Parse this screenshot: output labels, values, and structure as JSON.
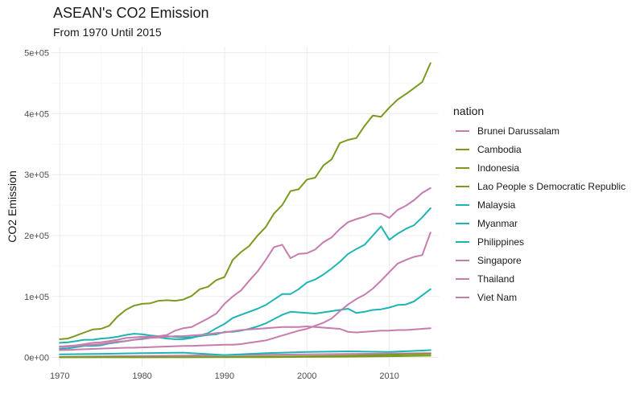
{
  "chart_data": {
    "type": "line",
    "title": "ASEAN's CO2 Emission",
    "subtitle": "From 1970 Until 2015",
    "xlabel": "",
    "ylabel": "CO2 Emission",
    "xlim": [
      1969,
      2016
    ],
    "ylim": [
      -15000,
      510000
    ],
    "x_ticks": [
      1970,
      1980,
      1990,
      2000,
      2010
    ],
    "y_ticks": [
      0,
      100000,
      200000,
      300000,
      400000,
      500000
    ],
    "y_tick_labels": [
      "0e+00",
      "1e+05",
      "2e+05",
      "3e+05",
      "4e+05",
      "5e+05"
    ],
    "grid": true,
    "legend_title": "nation",
    "legend_position": "right",
    "series": [
      {
        "name": "Brunei Darussalam",
        "color": "#c77cae",
        "x": [
          1970,
          1975,
          1980,
          1985,
          1990,
          1995,
          2000,
          2005,
          2010,
          2015
        ],
        "y": [
          1000,
          1800,
          2500,
          3200,
          3800,
          4500,
          5200,
          5800,
          6500,
          7000
        ]
      },
      {
        "name": "Cambodia",
        "color": "#7a9a1e",
        "x": [
          1970,
          1975,
          1980,
          1985,
          1990,
          1995,
          2000,
          2005,
          2010,
          2015
        ],
        "y": [
          500,
          700,
          400,
          500,
          800,
          1500,
          2000,
          3000,
          4500,
          6000
        ]
      },
      {
        "name": "Indonesia",
        "color": "#7a9a1e",
        "x": [
          1970,
          1971,
          1972,
          1973,
          1974,
          1975,
          1976,
          1977,
          1978,
          1979,
          1980,
          1981,
          1982,
          1983,
          1984,
          1985,
          1986,
          1987,
          1988,
          1989,
          1990,
          1991,
          1992,
          1993,
          1994,
          1995,
          1996,
          1997,
          1998,
          1999,
          2000,
          2001,
          2002,
          2003,
          2004,
          2005,
          2006,
          2007,
          2008,
          2009,
          2010,
          2011,
          2012,
          2013,
          2014,
          2015
        ],
        "y": [
          30000,
          31000,
          36000,
          41000,
          46000,
          47000,
          52000,
          67000,
          78000,
          85000,
          88000,
          89000,
          93000,
          94000,
          93000,
          95000,
          101000,
          112000,
          116000,
          127000,
          132000,
          160000,
          173000,
          183000,
          200000,
          214000,
          236000,
          250000,
          273000,
          276000,
          292000,
          295000,
          315000,
          325000,
          352000,
          357000,
          360000,
          380000,
          397000,
          395000,
          410000,
          423000,
          432000,
          442000,
          452000,
          483000
        ]
      },
      {
        "name": "Lao People s Democratic Republic",
        "color": "#7a9a1e",
        "x": [
          1970,
          1975,
          1980,
          1985,
          1990,
          1995,
          2000,
          2005,
          2010,
          2015
        ],
        "y": [
          300,
          300,
          300,
          400,
          400,
          500,
          900,
          1300,
          2000,
          3000
        ]
      },
      {
        "name": "Malaysia",
        "color": "#1fb4b4",
        "x": [
          1970,
          1971,
          1972,
          1973,
          1974,
          1975,
          1976,
          1977,
          1978,
          1979,
          1980,
          1981,
          1982,
          1983,
          1984,
          1985,
          1986,
          1987,
          1988,
          1989,
          1990,
          1991,
          1992,
          1993,
          1994,
          1995,
          1996,
          1997,
          1998,
          1999,
          2000,
          2001,
          2002,
          2003,
          2004,
          2005,
          2006,
          2007,
          2008,
          2009,
          2010,
          2011,
          2012,
          2013,
          2014,
          2015
        ],
        "y": [
          14000,
          15000,
          17000,
          19000,
          19000,
          20000,
          23000,
          25000,
          27000,
          29000,
          31000,
          33000,
          33000,
          31000,
          30000,
          30000,
          32000,
          36000,
          40000,
          48000,
          55000,
          65000,
          70000,
          75000,
          80000,
          86000,
          95000,
          104000,
          104000,
          112000,
          123000,
          128000,
          136000,
          146000,
          157000,
          170000,
          178000,
          185000,
          200000,
          215000,
          193000,
          203000,
          211000,
          217000,
          230000,
          245000
        ]
      },
      {
        "name": "Myanmar",
        "color": "#1fb4b4",
        "x": [
          1970,
          1975,
          1980,
          1985,
          1990,
          1995,
          2000,
          2005,
          2010,
          2015
        ],
        "y": [
          5000,
          6000,
          7000,
          8000,
          4000,
          7000,
          9000,
          10000,
          9000,
          12000
        ]
      },
      {
        "name": "Philippines",
        "color": "#1fb4b4",
        "x": [
          1970,
          1971,
          1972,
          1973,
          1974,
          1975,
          1976,
          1977,
          1978,
          1979,
          1980,
          1981,
          1982,
          1983,
          1984,
          1985,
          1986,
          1987,
          1988,
          1989,
          1990,
          1991,
          1992,
          1993,
          1994,
          1995,
          1996,
          1997,
          1998,
          1999,
          2000,
          2001,
          2002,
          2003,
          2004,
          2005,
          2006,
          2007,
          2008,
          2009,
          2010,
          2011,
          2012,
          2013,
          2014,
          2015
        ],
        "y": [
          24000,
          25000,
          27000,
          29000,
          29000,
          31000,
          32000,
          34000,
          37000,
          39000,
          38000,
          36000,
          35000,
          35000,
          34000,
          33000,
          33000,
          35000,
          37000,
          38000,
          42000,
          42000,
          44000,
          47000,
          51000,
          56000,
          63000,
          70000,
          75000,
          74000,
          73000,
          72000,
          74000,
          76000,
          78000,
          80000,
          73000,
          75000,
          78000,
          79000,
          82000,
          86000,
          87000,
          92000,
          102000,
          112000
        ]
      },
      {
        "name": "Singapore",
        "color": "#c77cae",
        "x": [
          1970,
          1971,
          1972,
          1973,
          1974,
          1975,
          1976,
          1977,
          1978,
          1979,
          1980,
          1981,
          1982,
          1983,
          1984,
          1985,
          1986,
          1987,
          1988,
          1989,
          1990,
          1991,
          1992,
          1993,
          1994,
          1995,
          1996,
          1997,
          1998,
          1999,
          2000,
          2001,
          2002,
          2003,
          2004,
          2005,
          2006,
          2007,
          2008,
          2009,
          2010,
          2011,
          2012,
          2013,
          2014,
          2015
        ],
        "y": [
          17000,
          18000,
          19000,
          20000,
          21000,
          22000,
          24000,
          26000,
          27000,
          29000,
          30000,
          32000,
          33000,
          34000,
          35000,
          35000,
          36000,
          37000,
          38000,
          40000,
          41000,
          43000,
          45000,
          46000,
          47000,
          48000,
          49000,
          50000,
          50000,
          50000,
          51000,
          50000,
          49000,
          48000,
          47000,
          42000,
          41000,
          42000,
          43000,
          44000,
          44000,
          45000,
          45000,
          46000,
          47000,
          48000
        ]
      },
      {
        "name": "Thailand",
        "color": "#c77cae",
        "x": [
          1970,
          1971,
          1972,
          1973,
          1974,
          1975,
          1976,
          1977,
          1978,
          1979,
          1980,
          1981,
          1982,
          1983,
          1984,
          1985,
          1986,
          1987,
          1988,
          1989,
          1990,
          1991,
          1992,
          1993,
          1994,
          1995,
          1996,
          1997,
          1998,
          1999,
          2000,
          2001,
          2002,
          2003,
          2004,
          2005,
          2006,
          2007,
          2008,
          2009,
          2010,
          2011,
          2012,
          2013,
          2014,
          2015
        ],
        "y": [
          18000,
          19000,
          20000,
          22000,
          24000,
          25000,
          27000,
          29000,
          32000,
          33000,
          34000,
          34000,
          35000,
          37000,
          44000,
          48000,
          50000,
          57000,
          64000,
          72000,
          88000,
          100000,
          110000,
          126000,
          141000,
          160000,
          181000,
          185000,
          163000,
          170000,
          171000,
          177000,
          189000,
          197000,
          211000,
          222000,
          227000,
          231000,
          236000,
          236000,
          229000,
          242000,
          249000,
          258000,
          270000,
          278000
        ]
      },
      {
        "name": "Viet Nam",
        "color": "#c77cae",
        "x": [
          1970,
          1971,
          1972,
          1973,
          1974,
          1975,
          1976,
          1977,
          1978,
          1979,
          1980,
          1981,
          1982,
          1983,
          1984,
          1985,
          1986,
          1987,
          1988,
          1989,
          1990,
          1991,
          1992,
          1993,
          1994,
          1995,
          1996,
          1997,
          1998,
          1999,
          2000,
          2001,
          2002,
          2003,
          2004,
          2005,
          2006,
          2007,
          2008,
          2009,
          2010,
          2011,
          2012,
          2013,
          2014,
          2015
        ],
        "y": [
          12000,
          12500,
          13000,
          13500,
          14000,
          14500,
          15000,
          15500,
          16000,
          16000,
          16500,
          17000,
          17500,
          18000,
          18500,
          19000,
          19000,
          19500,
          20000,
          20500,
          21000,
          21000,
          22000,
          24000,
          26000,
          28000,
          32000,
          36000,
          40000,
          44000,
          47000,
          52000,
          57000,
          64000,
          76000,
          87000,
          96000,
          103000,
          113000,
          126000,
          140000,
          154000,
          160000,
          165000,
          168000,
          205000
        ]
      }
    ]
  }
}
